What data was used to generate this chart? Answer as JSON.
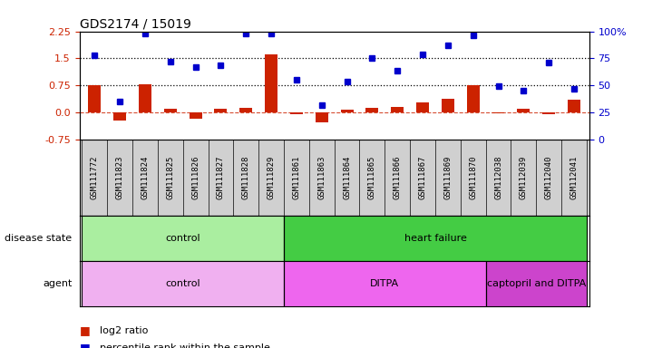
{
  "title": "GDS2174 / 15019",
  "samples": [
    "GSM111772",
    "GSM111823",
    "GSM111824",
    "GSM111825",
    "GSM111826",
    "GSM111827",
    "GSM111828",
    "GSM111829",
    "GSM111861",
    "GSM111863",
    "GSM111864",
    "GSM111865",
    "GSM111866",
    "GSM111867",
    "GSM111869",
    "GSM111870",
    "GSM112038",
    "GSM112039",
    "GSM112040",
    "GSM112041"
  ],
  "log2_ratio": [
    0.75,
    -0.22,
    0.78,
    0.09,
    -0.18,
    0.09,
    0.13,
    1.62,
    -0.05,
    -0.28,
    0.07,
    0.13,
    0.15,
    0.28,
    0.38,
    0.75,
    -0.03,
    0.1,
    -0.06,
    0.35
  ],
  "percentile_rank_left": [
    1.58,
    0.3,
    2.2,
    1.4,
    1.25,
    1.3,
    2.2,
    2.2,
    0.9,
    0.2,
    0.85,
    1.5,
    1.15,
    1.6,
    1.85,
    2.15,
    0.72,
    0.6,
    1.38,
    0.65
  ],
  "ylim_left": [
    -0.75,
    2.25
  ],
  "ylim_right": [
    0,
    100
  ],
  "yticks_left": [
    -0.75,
    0.0,
    0.75,
    1.5,
    2.25
  ],
  "yticks_right": [
    0,
    25,
    50,
    75,
    100
  ],
  "hlines": [
    0.75,
    1.5
  ],
  "bar_color": "#cc2200",
  "dot_color": "#0000cc",
  "disease_state_groups": [
    {
      "label": "control",
      "start": 0,
      "end": 8,
      "color": "#aaeea0"
    },
    {
      "label": "heart failure",
      "start": 8,
      "end": 20,
      "color": "#44cc44"
    }
  ],
  "agent_groups": [
    {
      "label": "control",
      "start": 0,
      "end": 8,
      "color": "#f0b0f0"
    },
    {
      "label": "DITPA",
      "start": 8,
      "end": 16,
      "color": "#ee66ee"
    },
    {
      "label": "captopril and DITPA",
      "start": 16,
      "end": 20,
      "color": "#cc44cc"
    }
  ],
  "legend_items": [
    {
      "color": "#cc2200",
      "label": "log2 ratio"
    },
    {
      "color": "#0000cc",
      "label": "percentile rank within the sample"
    }
  ],
  "bar_width": 0.5,
  "xlim": [
    -0.6,
    19.6
  ],
  "title_fontsize": 10,
  "tick_fontsize": 8,
  "label_fontsize": 8,
  "sample_fontsize": 6.5
}
